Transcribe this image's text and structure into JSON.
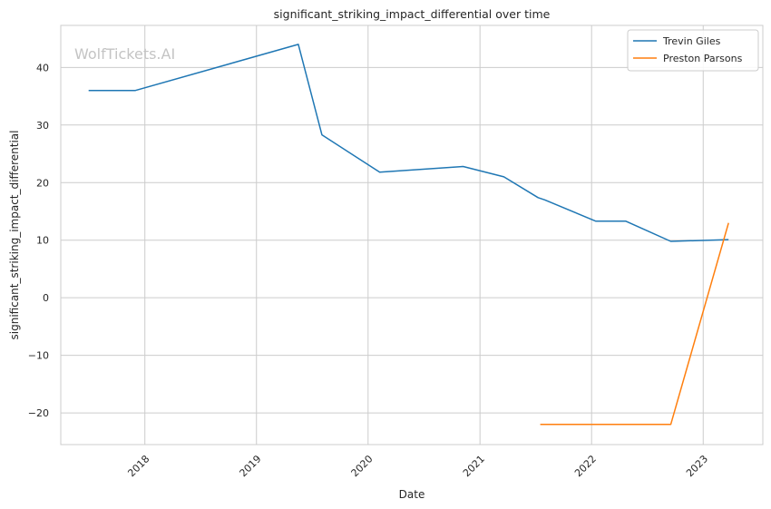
{
  "chart_data": {
    "type": "line",
    "title": "significant_striking_impact_differential over time",
    "xlabel": "Date",
    "ylabel": "significant_striking_impact_differential",
    "watermark": "WolfTickets.AI",
    "x_ticks": [
      "2018",
      "2019",
      "2020",
      "2021",
      "2022",
      "2023"
    ],
    "y_ticks": [
      -20,
      -10,
      0,
      10,
      20,
      30,
      40
    ],
    "xlim": [
      "2017-04-01",
      "2023-07-15"
    ],
    "ylim": [
      -25.5,
      47.3
    ],
    "grid": true,
    "legend_position": "top-right",
    "series": [
      {
        "name": "Trevin Giles",
        "color": "#1f77b4",
        "points": [
          {
            "x": "2017-07-01",
            "y": 36.0
          },
          {
            "x": "2017-12-01",
            "y": 36.0
          },
          {
            "x": "2019-05-18",
            "y": 44.0
          },
          {
            "x": "2019-08-03",
            "y": 28.3
          },
          {
            "x": "2020-02-08",
            "y": 21.8
          },
          {
            "x": "2020-11-07",
            "y": 22.8
          },
          {
            "x": "2021-03-20",
            "y": 21.0
          },
          {
            "x": "2021-07-10",
            "y": 17.4
          },
          {
            "x": "2021-08-01",
            "y": 17.0
          },
          {
            "x": "2022-01-15",
            "y": 13.3
          },
          {
            "x": "2022-04-23",
            "y": 13.3
          },
          {
            "x": "2022-09-17",
            "y": 9.8
          },
          {
            "x": "2023-03-25",
            "y": 10.1
          }
        ]
      },
      {
        "name": "Preston Parsons",
        "color": "#ff7f0e",
        "points": [
          {
            "x": "2021-07-17",
            "y": -22.0
          },
          {
            "x": "2022-09-17",
            "y": -22.0
          },
          {
            "x": "2023-03-25",
            "y": 13.0
          }
        ]
      }
    ]
  }
}
